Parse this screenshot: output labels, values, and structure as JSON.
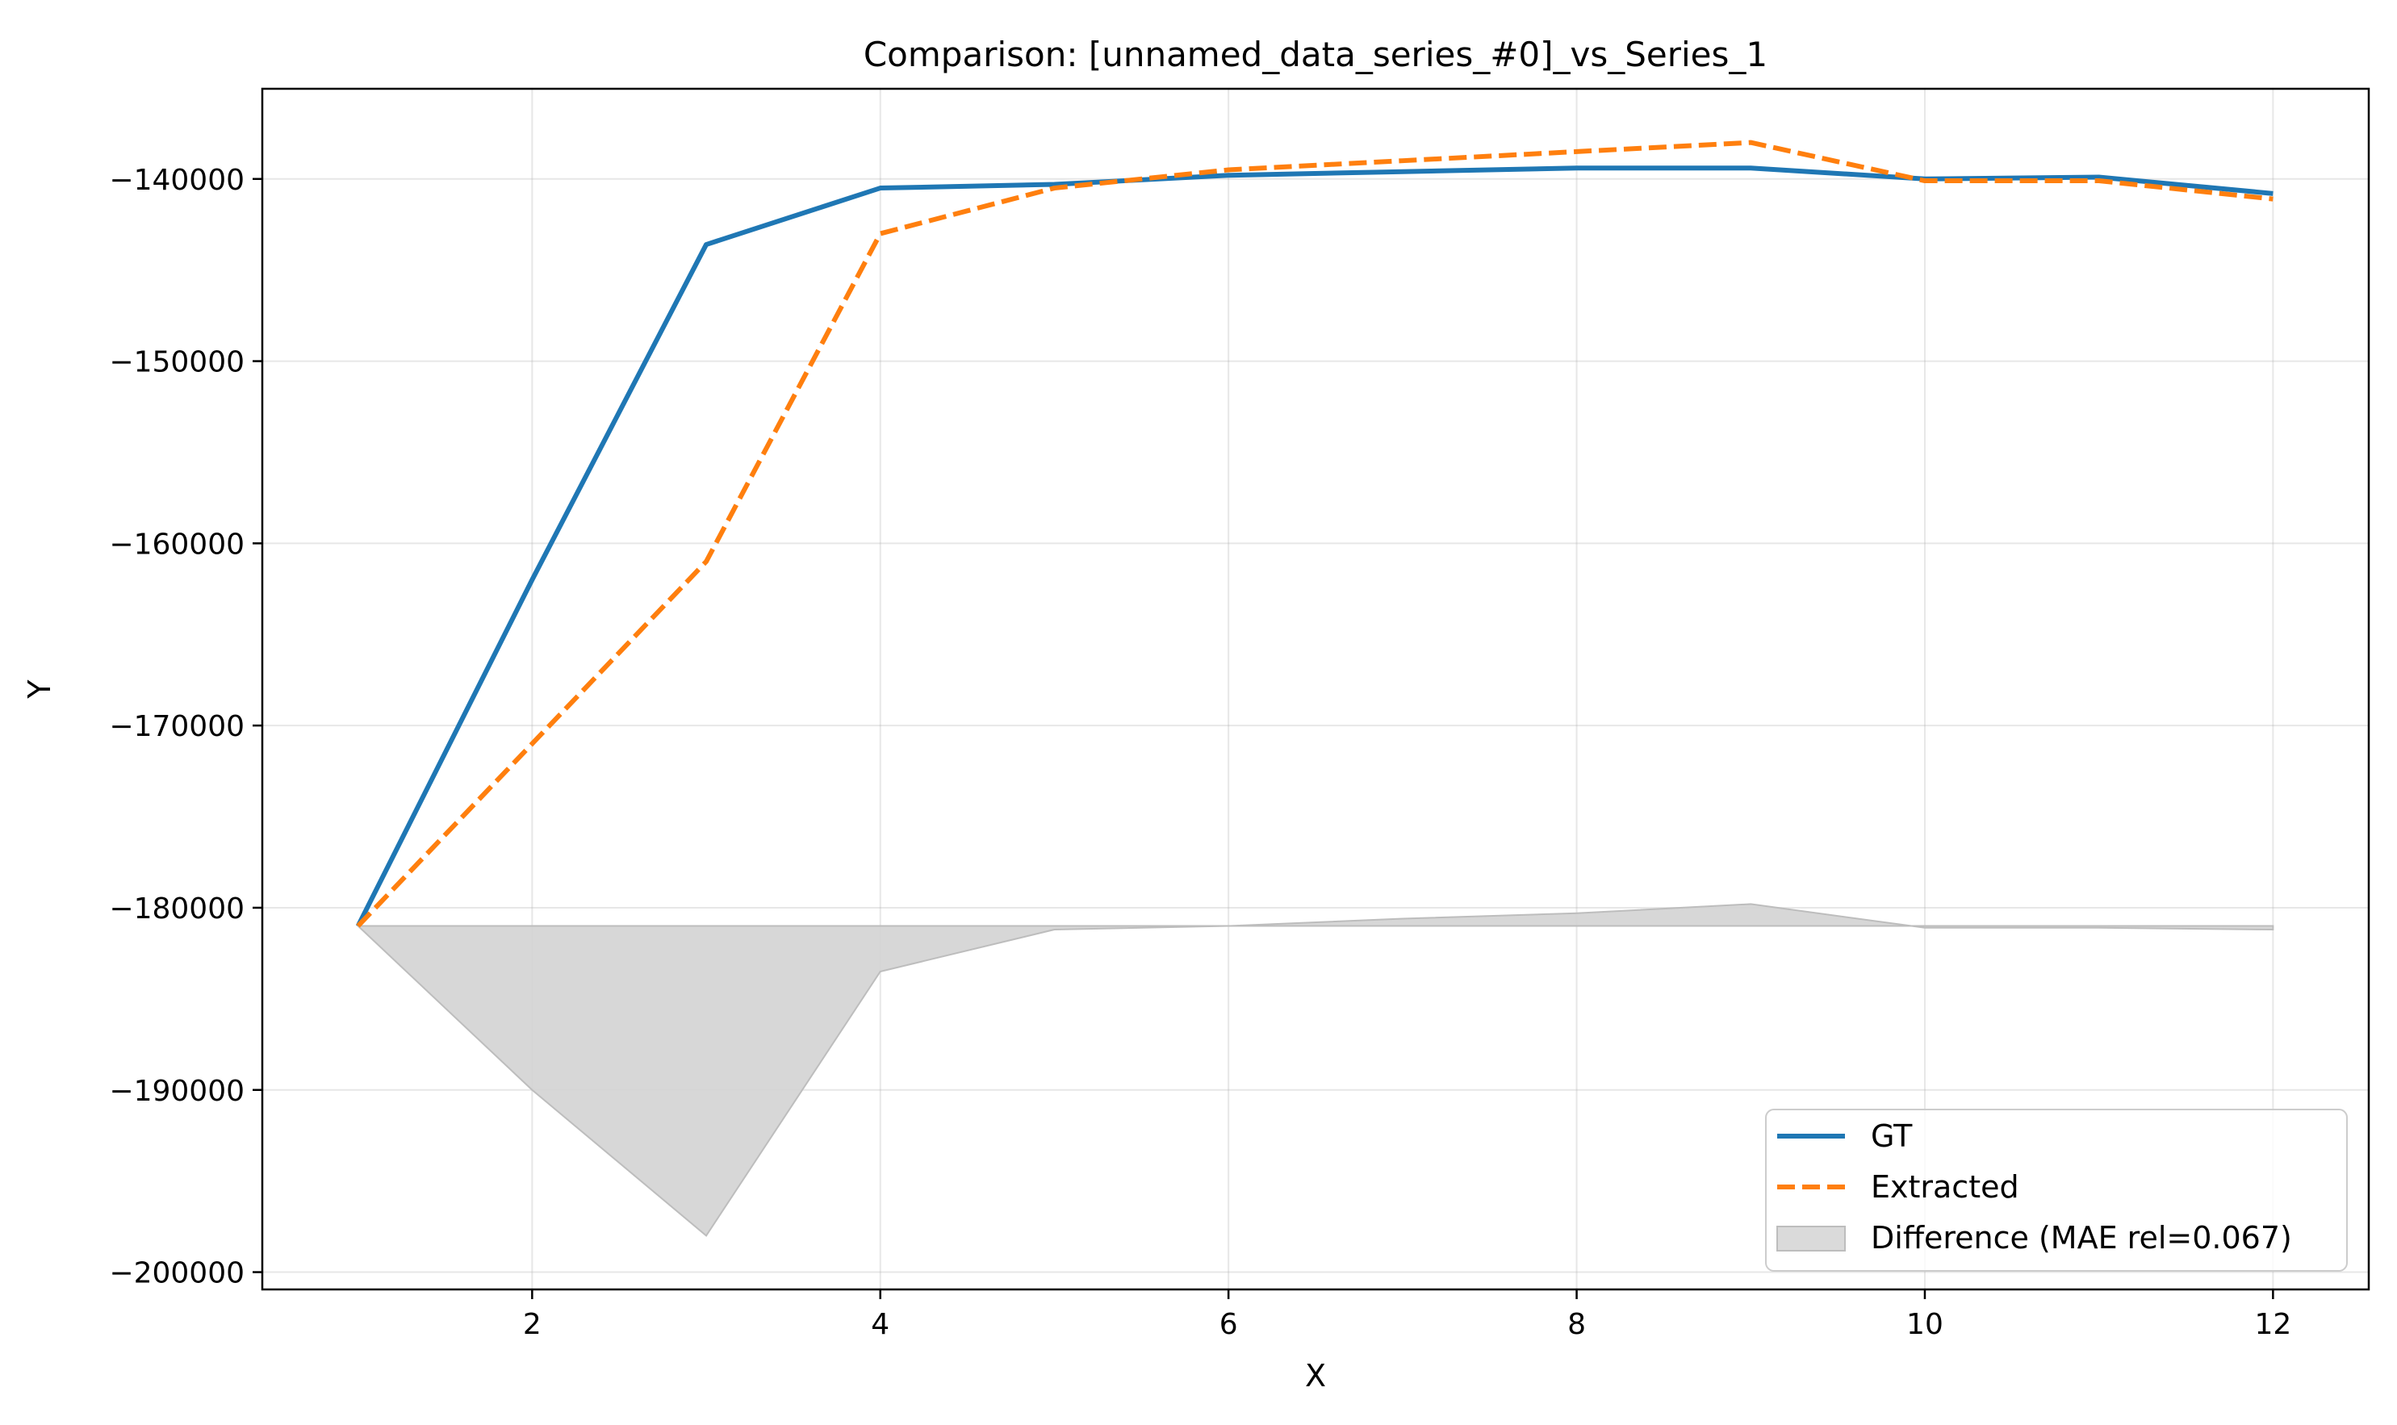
{
  "chart_data": {
    "type": "line",
    "title": "Comparison: [unnamed_data_series_#0]_vs_Series_1",
    "xlabel": "X",
    "ylabel": "Y",
    "xlim": [
      0.45,
      12.55
    ],
    "ylim": [
      -200950,
      -135050
    ],
    "xticks": [
      2,
      4,
      6,
      8,
      10,
      12
    ],
    "xtick_labels": [
      "2",
      "4",
      "6",
      "8",
      "10",
      "12"
    ],
    "yticks": [
      -140000,
      -150000,
      -160000,
      -170000,
      -180000,
      -190000,
      -200000
    ],
    "ytick_labels": [
      "−140000",
      "−150000",
      "−160000",
      "−170000",
      "−180000",
      "−190000",
      "−200000"
    ],
    "grid": true,
    "legend_position": "lower-right",
    "x": [
      1,
      2,
      3,
      4,
      5,
      6,
      7,
      8,
      9,
      10,
      11,
      12
    ],
    "series": [
      {
        "name": "GT",
        "color": "#1f77b4",
        "style": "solid",
        "values": [
          -181000,
          -162000,
          -143600,
          -140500,
          -140300,
          -139800,
          -139600,
          -139400,
          -139400,
          -140000,
          -139900,
          -140800
        ]
      },
      {
        "name": "Extracted",
        "color": "#ff7f0e",
        "style": "dashed",
        "values": [
          -181000,
          -171000,
          -161000,
          -143000,
          -140500,
          -139500,
          -139000,
          -138500,
          -138000,
          -140100,
          -140100,
          -141100
        ]
      }
    ],
    "difference": {
      "name": "Difference (MAE rel=0.067)",
      "color": "#d3d3d3",
      "baseline": -181000,
      "values": [
        -181000,
        -190000,
        -198000,
        -183500,
        -181200,
        -181000,
        -180600,
        -180300,
        -179800,
        -181100,
        -181100,
        -181200
      ]
    }
  }
}
